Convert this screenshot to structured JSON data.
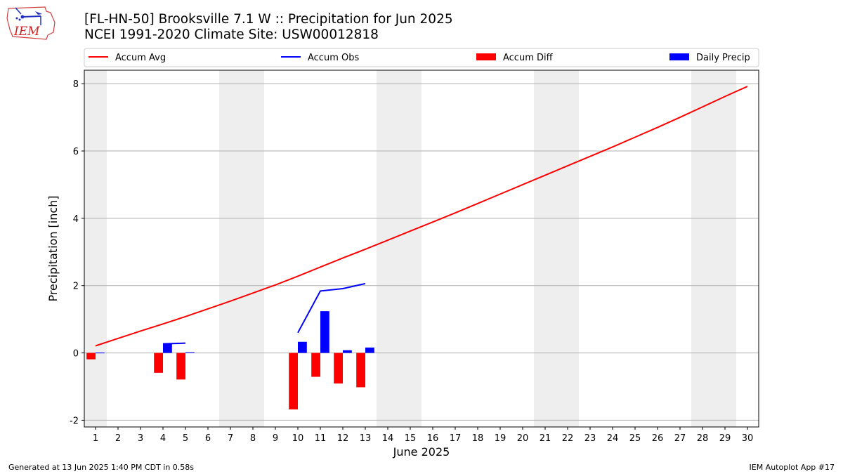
{
  "header": {
    "title": "[FL-HN-50] Brooksville 7.1 W :: Precipitation for Jun 2025",
    "subtitle": "NCEI 1991-2020 Climate Site: USW00012818",
    "logo_text": "IEM"
  },
  "footer": {
    "left": "Generated at 13 Jun 2025 1:40 PM CDT in 0.58s",
    "right": "IEM Autoplot App #17"
  },
  "colors": {
    "accum_avg": "#ff0000",
    "accum_obs": "#0000ff",
    "accum_diff": "#ff0000",
    "daily_precip": "#0000ff",
    "weekend_shade": "#eeeeee",
    "grid": "#b0b0b0"
  },
  "chart_data": {
    "type": "bar",
    "xlabel": "June 2025",
    "ylabel": "Precipitation [inch]",
    "xlim": [
      0.5,
      30.5
    ],
    "ylim": [
      -2.2,
      8.4
    ],
    "yticks": [
      -2,
      0,
      2,
      4,
      6,
      8
    ],
    "xticks": [
      1,
      2,
      3,
      4,
      5,
      6,
      7,
      8,
      9,
      10,
      11,
      12,
      13,
      14,
      15,
      16,
      17,
      18,
      19,
      20,
      21,
      22,
      23,
      24,
      25,
      26,
      27,
      28,
      29,
      30
    ],
    "grid": "horizontal",
    "legend_position": "top",
    "weekend_spans": [
      [
        0.5,
        1.5
      ],
      [
        6.5,
        8.5
      ],
      [
        13.5,
        15.5
      ],
      [
        20.5,
        22.5
      ],
      [
        27.5,
        29.5
      ]
    ],
    "series": [
      {
        "name": "Accum Avg",
        "kind": "line",
        "x": [
          1,
          2,
          3,
          4,
          5,
          6,
          7,
          8,
          9,
          10,
          11,
          12,
          13,
          14,
          15,
          16,
          17,
          18,
          19,
          20,
          21,
          22,
          23,
          24,
          25,
          26,
          27,
          28,
          29,
          30
        ],
        "values": [
          0.21,
          0.43,
          0.65,
          0.86,
          1.08,
          1.31,
          1.54,
          1.78,
          2.02,
          2.28,
          2.55,
          2.82,
          3.08,
          3.35,
          3.62,
          3.89,
          4.16,
          4.44,
          4.72,
          5.0,
          5.28,
          5.56,
          5.84,
          6.12,
          6.41,
          6.7,
          7.0,
          7.31,
          7.62,
          7.92
        ]
      },
      {
        "name": "Accum Obs",
        "kind": "line",
        "segments": [
          {
            "x": [
              4,
              5
            ],
            "values": [
              0.27,
              0.29
            ]
          },
          {
            "x": [
              10,
              11,
              12,
              13
            ],
            "values": [
              0.6,
              1.84,
              1.91,
              2.06
            ]
          }
        ]
      },
      {
        "name": "Accum Diff",
        "kind": "bar",
        "x": [
          1,
          4,
          5,
          10,
          11,
          12,
          13
        ],
        "values": [
          -0.19,
          -0.59,
          -0.79,
          -1.68,
          -0.71,
          -0.91,
          -1.02
        ]
      },
      {
        "name": "Daily Precip",
        "kind": "bar",
        "x": [
          1,
          4,
          5,
          10,
          11,
          12,
          13
        ],
        "values": [
          0.01,
          0.27,
          0.02,
          0.33,
          1.24,
          0.08,
          0.16
        ]
      }
    ]
  }
}
